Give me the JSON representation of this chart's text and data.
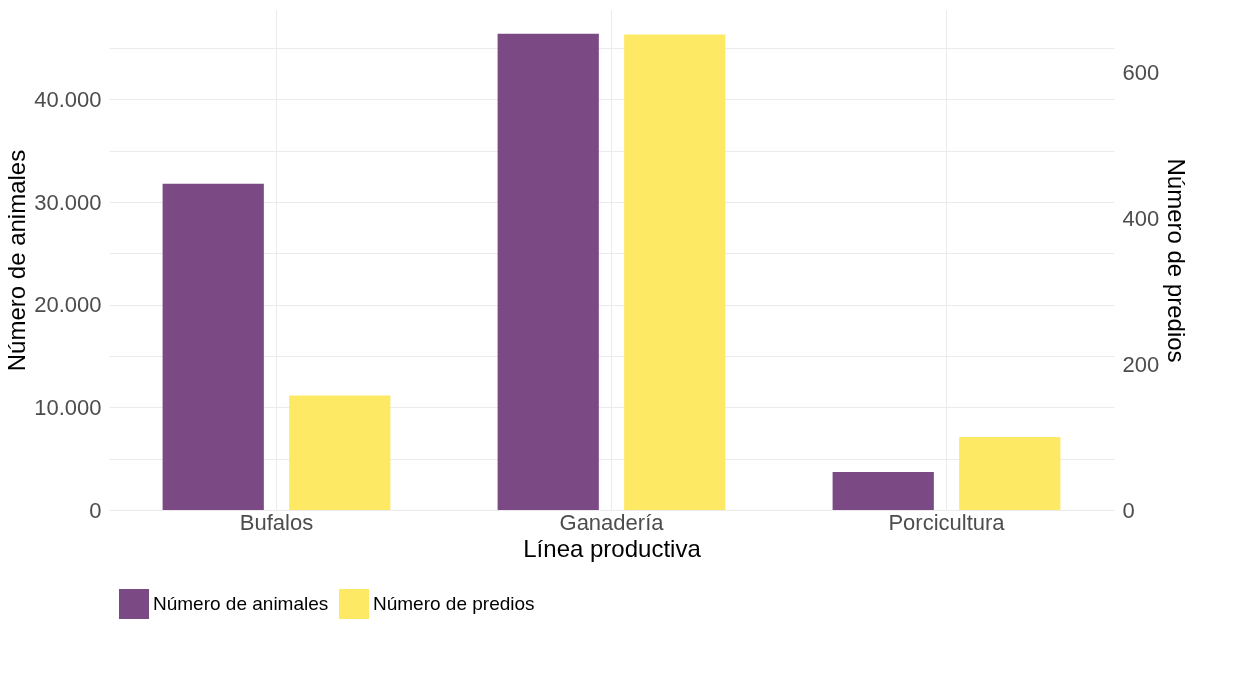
{
  "chart_data": {
    "type": "bar",
    "xlabel": "Línea productiva",
    "ylabel": "Número de animales",
    "y2label": "Número de predios",
    "categories": [
      "Bufalos",
      "Ganadería",
      "Porcicultura"
    ],
    "series": [
      {
        "name": "Número de animales",
        "color": "#7b4a85",
        "values": [
          31800,
          46400,
          3700
        ]
      },
      {
        "name": "Número de predios",
        "color": "#fde964",
        "values": [
          157,
          652,
          100
        ],
        "axis": "y2"
      }
    ],
    "ylim": [
      0,
      48720
    ],
    "yticks": [
      {
        "value": 0,
        "label": "0"
      },
      {
        "value": 5000,
        "label": null
      },
      {
        "value": 10000,
        "label": "10.000"
      },
      {
        "value": 15000,
        "label": null
      },
      {
        "value": 20000,
        "label": "20.000"
      },
      {
        "value": 25000,
        "label": null
      },
      {
        "value": 30000,
        "label": "30.000"
      },
      {
        "value": 35000,
        "label": null
      },
      {
        "value": 40000,
        "label": "40.000"
      },
      {
        "value": 45000,
        "label": null
      }
    ],
    "y2lim": [
      0,
      685.7
    ],
    "y2ticks": [
      0,
      200,
      400,
      600
    ],
    "grid": true,
    "legend": "bottom"
  }
}
